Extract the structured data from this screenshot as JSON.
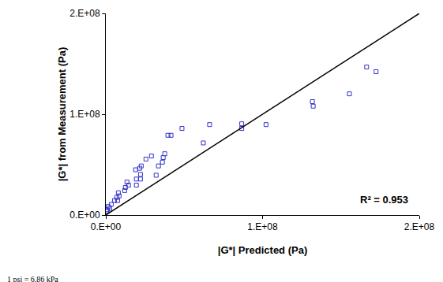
{
  "chart_data": {
    "type": "scatter",
    "xlabel": "|G*| Predicted (Pa)",
    "ylabel": "|G*| from Measurement (Pa)",
    "xlim": [
      0,
      200000000
    ],
    "ylim": [
      0,
      200000000
    ],
    "xticks": [
      {
        "value": 0,
        "label": "0.E+00"
      },
      {
        "value": 100000000,
        "label": "1.E+08"
      },
      {
        "value": 200000000,
        "label": "2.E+08"
      }
    ],
    "yticks": [
      {
        "value": 0,
        "label": "0.E+00"
      },
      {
        "value": 100000000,
        "label": "1.E+08"
      },
      {
        "value": 200000000,
        "label": "2.E+08"
      }
    ],
    "grid": false,
    "annotations": [
      "R² = 0.953",
      "1 psi = 6.86 kPa"
    ],
    "series": [
      {
        "type": "scatter",
        "marker": "square-open",
        "color": "#3333cc",
        "x": [
          166400000,
          172400000,
          155400000,
          131800000,
          132300000,
          102200000,
          86700000,
          86700000,
          66200000,
          62200000,
          48600000,
          41600000,
          39600000,
          37600000,
          36600000,
          36100000,
          33600000,
          32100000,
          29100000,
          25600000,
          22600000,
          21600000,
          19000000,
          22100000,
          19500000,
          22100000,
          19500000,
          13500000,
          14500000,
          12500000,
          12000000,
          8000000,
          8500000,
          7000000,
          7500000,
          5500000,
          3500000,
          1500000,
          2500000,
          1000000,
          500000
        ],
        "y": [
          146800000,
          142200000,
          120200000,
          112500000,
          108000000,
          89700000,
          90500000,
          85900000,
          89700000,
          71500000,
          85900000,
          79100000,
          79100000,
          60800000,
          57000000,
          52500000,
          48700000,
          39500000,
          58600000,
          55500000,
          48700000,
          46400000,
          44900000,
          40300000,
          35700000,
          35700000,
          29700000,
          32700000,
          29700000,
          27400000,
          24300000,
          22100000,
          19000000,
          17500000,
          14400000,
          14400000,
          10600000,
          8400000,
          6800000,
          5300000,
          3800000
        ]
      },
      {
        "type": "line",
        "line_style": "solid",
        "color": "#000000",
        "x": [
          0,
          200000000
        ],
        "y": [
          0,
          200000000
        ]
      }
    ]
  }
}
